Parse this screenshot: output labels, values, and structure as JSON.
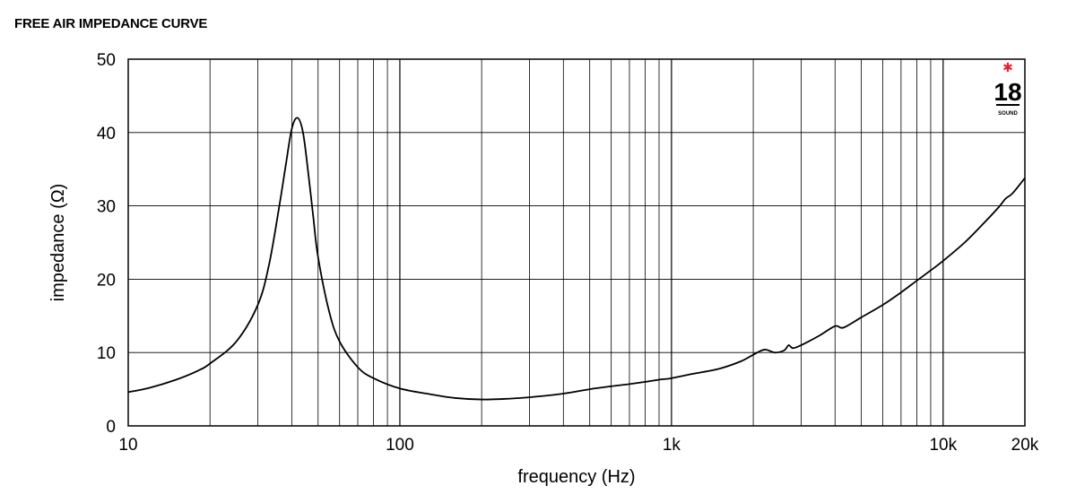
{
  "chart_data": {
    "type": "line",
    "title": "FREE AIR IMPEDANCE CURVE",
    "xlabel": "frequency (Hz)",
    "ylabel": "impedance (Ω)",
    "xscale": "log",
    "xlim": [
      10,
      20000
    ],
    "ylim": [
      0,
      50
    ],
    "grid": true,
    "x_ticks": [
      {
        "value": 10,
        "label": "10"
      },
      {
        "value": 100,
        "label": "100"
      },
      {
        "value": 1000,
        "label": "1k"
      },
      {
        "value": 10000,
        "label": "10k"
      },
      {
        "value": 20000,
        "label": "20k"
      }
    ],
    "y_ticks": [
      {
        "value": 0,
        "label": "0"
      },
      {
        "value": 10,
        "label": "10"
      },
      {
        "value": 20,
        "label": "20"
      },
      {
        "value": 30,
        "label": "30"
      },
      {
        "value": 40,
        "label": "40"
      },
      {
        "value": 50,
        "label": "50"
      }
    ],
    "series": [
      {
        "x": [
          10,
          12,
          15,
          18,
          20,
          25,
          30,
          33,
          36,
          38,
          40,
          42,
          44,
          46,
          48,
          50,
          55,
          60,
          70,
          80,
          100,
          130,
          160,
          200,
          250,
          300,
          400,
          500,
          600,
          700,
          800,
          900,
          1000,
          1200,
          1500,
          1800,
          2000,
          2200,
          2400,
          2600,
          2700,
          2800,
          3000,
          3500,
          4000,
          4300,
          5000,
          6000,
          7000,
          8000,
          9000,
          10000,
          12000,
          14000,
          16000,
          17000,
          18000,
          20000
        ],
        "y": [
          4.6,
          5.2,
          6.3,
          7.5,
          8.5,
          11.5,
          16.5,
          22,
          30,
          35.5,
          40.5,
          42,
          40,
          34.5,
          28.5,
          23,
          15.5,
          11.5,
          8,
          6.5,
          5.1,
          4.3,
          3.8,
          3.6,
          3.7,
          3.9,
          4.4,
          5,
          5.4,
          5.7,
          6,
          6.3,
          6.5,
          7.1,
          7.8,
          8.8,
          9.7,
          10.4,
          10,
          10.3,
          11,
          10.6,
          11,
          12.3,
          13.6,
          13.4,
          14.8,
          16.5,
          18.2,
          19.8,
          21.2,
          22.5,
          25,
          27.5,
          29.8,
          31,
          31.7,
          33.8
        ]
      }
    ],
    "line_color": "#000000",
    "grid_color": "#000000"
  },
  "logo": {
    "text": "18",
    "subtext": "SOUND",
    "accent_color": "#e8202a"
  }
}
